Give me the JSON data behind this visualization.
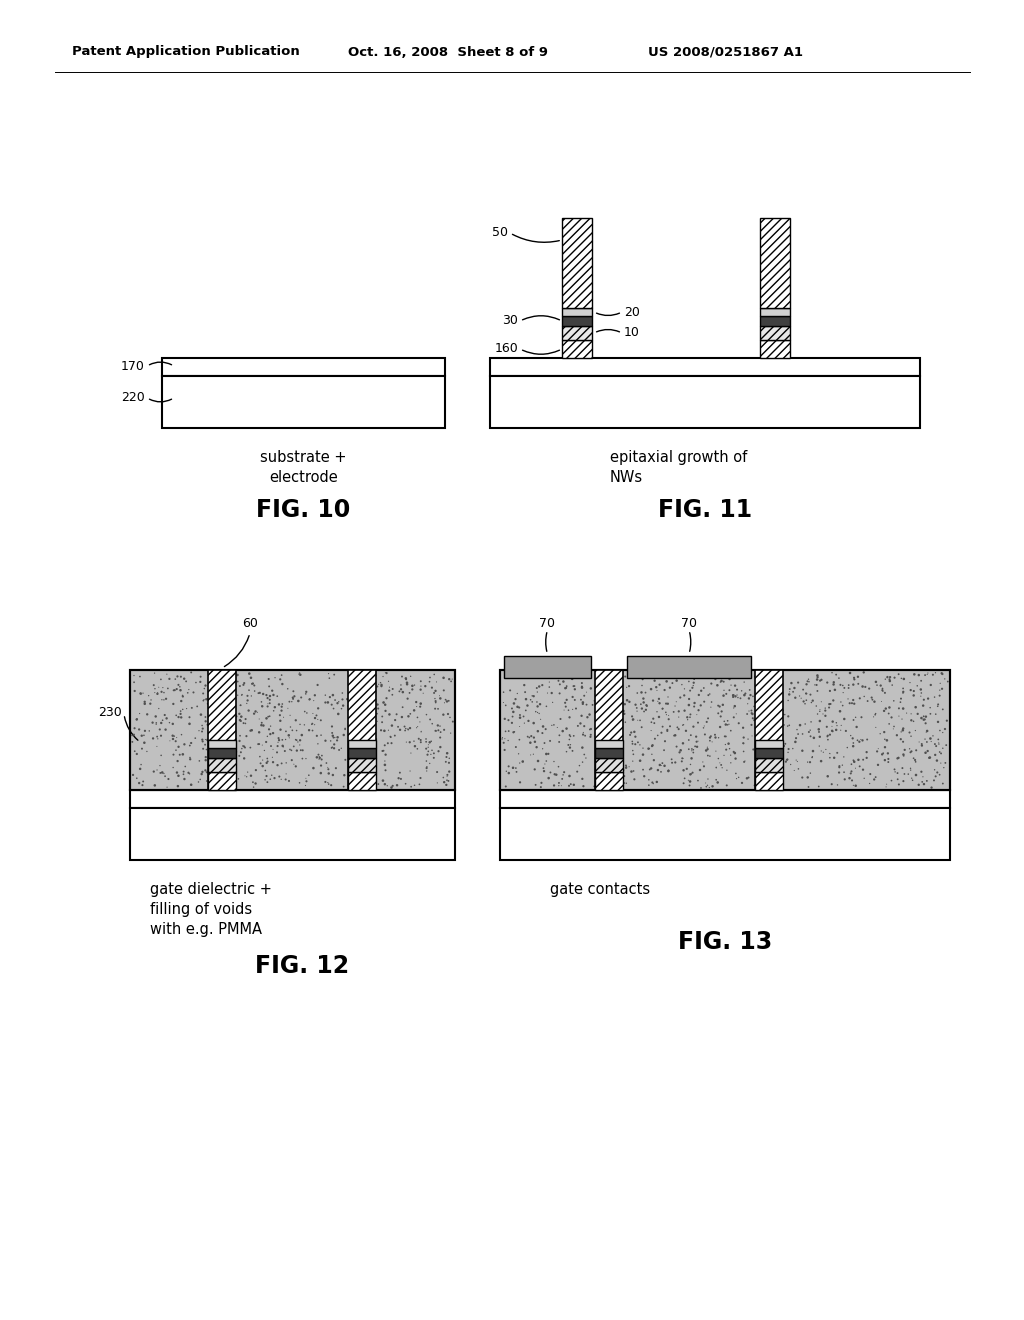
{
  "bg_color": "#ffffff",
  "header_left": "Patent Application Publication",
  "header_mid": "Oct. 16, 2008  Sheet 8 of 9",
  "header_right": "US 2008/0251867 A1",
  "fig10_label": "FIG. 10",
  "fig11_label": "FIG. 11",
  "fig12_label": "FIG. 12",
  "fig13_label": "FIG. 13",
  "fig10_caption": "substrate +\nelectrode",
  "fig11_caption": "epitaxial growth of\nNWs",
  "fig12_caption": "gate dielectric +\nfilling of voids\nwith e.g. PMMA",
  "fig13_caption": "gate contacts",
  "hatch_nw_main": "////",
  "hatch_layer10": "////",
  "hatch_seed160": "////",
  "lw_border": 1.5
}
